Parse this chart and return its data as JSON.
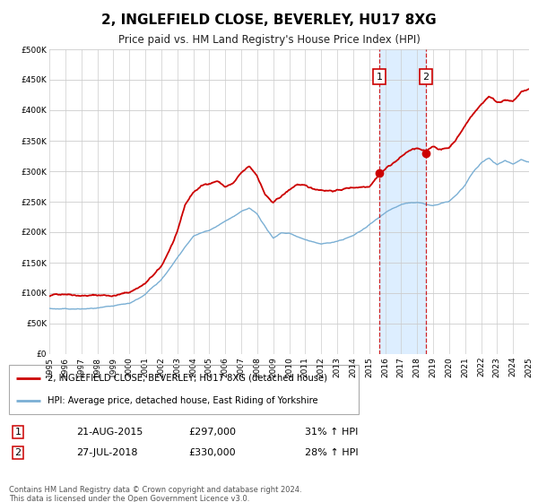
{
  "title": "2, INGLEFIELD CLOSE, BEVERLEY, HU17 8XG",
  "subtitle": "Price paid vs. HM Land Registry's House Price Index (HPI)",
  "legend_line1": "2, INGLEFIELD CLOSE, BEVERLEY, HU17 8XG (detached house)",
  "legend_line2": "HPI: Average price, detached house, East Riding of Yorkshire",
  "transaction1_date": "21-AUG-2015",
  "transaction1_price": "£297,000",
  "transaction1_hpi": "31% ↑ HPI",
  "transaction1_year": 2015.64,
  "transaction1_value": 297000,
  "transaction2_date": "27-JUL-2018",
  "transaction2_price": "£330,000",
  "transaction2_hpi": "28% ↑ HPI",
  "transaction2_year": 2018.56,
  "transaction2_value": 330000,
  "red_color": "#cc0000",
  "blue_color": "#7aafd4",
  "highlight_bg": "#ddeeff",
  "grid_color": "#cccccc",
  "footer_text": "Contains HM Land Registry data © Crown copyright and database right 2024.\nThis data is licensed under the Open Government Licence v3.0.",
  "ylim_min": 0,
  "ylim_max": 500000,
  "ytick_step": 50000,
  "xmin": 1995,
  "xmax": 2025
}
